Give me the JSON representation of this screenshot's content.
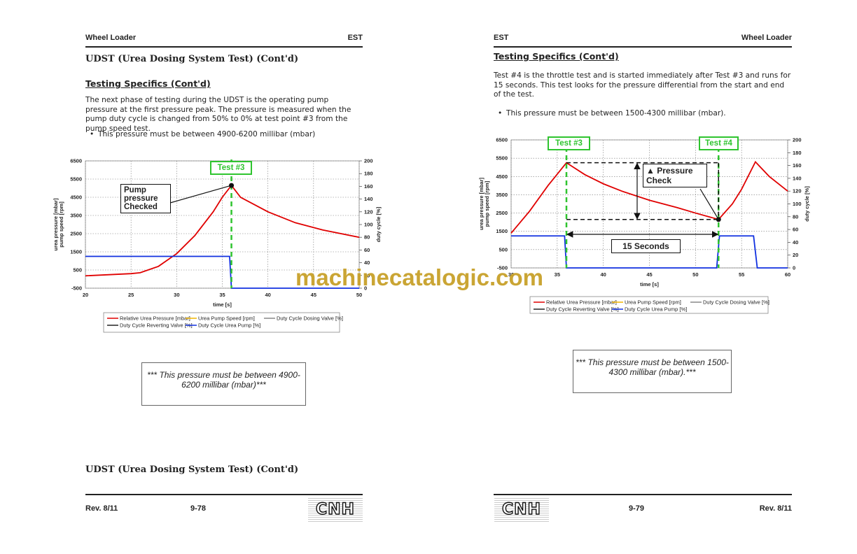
{
  "left_page": {
    "header": {
      "left": "Wheel Loader",
      "right": "EST"
    },
    "section_title": "UDST (Urea Dosing System Test) (Cont'd)",
    "subtitle": "Testing Specifics (Cont'd)",
    "paragraph": "The next phase of testing during the UDST is the operating pump pressure at the first pressure peak. The pressure is measured when the pump duty cycle is changed from 50% to 0% at test point #3 from the pump speed test.",
    "bullet": "This pressure must be between 4900-6200 millibar (mbar)",
    "chart": {
      "type": "line",
      "xlabel": "time [s]",
      "ylabel": [
        "urea pressure [mbar]",
        "pump speed [rpm]"
      ],
      "y2label": "duty cycle [%]",
      "xlim": [
        20,
        50
      ],
      "xticks": [
        20,
        25,
        30,
        35,
        40,
        45,
        50
      ],
      "ylim": [
        -500,
        6500
      ],
      "yticks": [
        -500,
        500,
        1500,
        2500,
        3500,
        4500,
        5500,
        6500
      ],
      "y2lim": [
        0,
        200
      ],
      "y2ticks": [
        0,
        20,
        40,
        60,
        80,
        100,
        120,
        140,
        160,
        180,
        200
      ],
      "grid": true,
      "series": [
        {
          "name": "Relative Urea Pressure [mbar]",
          "color": "#e00000",
          "x": [
            20,
            25,
            26,
            28,
            30,
            32,
            34,
            35,
            36,
            37,
            40,
            43,
            46,
            50
          ],
          "values": [
            180,
            300,
            350,
            700,
            1400,
            2400,
            3700,
            4500,
            5150,
            4500,
            3700,
            3100,
            2700,
            2300
          ]
        },
        {
          "name": "Urea Pump Speed [rpm]",
          "color": "#f0b400",
          "x": [],
          "values": []
        },
        {
          "name": "Duty Cycle Dosing Valve [%]",
          "color": "#888888",
          "axis": "y2",
          "x": [],
          "values": []
        },
        {
          "name": "Duty Cycle Reverting Valve [%]",
          "color": "#222222",
          "axis": "y2",
          "x": [],
          "values": []
        },
        {
          "name": "Duty Cycle Urea Pump  [%]",
          "color": "#1030e0",
          "axis": "y2",
          "x": [
            20,
            35.8,
            36,
            50
          ],
          "values": [
            50,
            50,
            0,
            0
          ]
        }
      ],
      "annotations": [
        "Test #3",
        "Pump pressure Checked"
      ]
    },
    "note": "*** This pressure must be between 4900-6200 millibar (mbar)***",
    "footer_title": "UDST (Urea Dosing System Test) (Cont'd)",
    "footer": {
      "rev": "Rev. 8/11",
      "page": "9-78",
      "logo": "CNH"
    }
  },
  "right_page": {
    "header": {
      "left": "EST",
      "right": "Wheel Loader"
    },
    "subtitle": "Testing Specifics (Cont'd)",
    "paragraph": "Test #4 is the throttle test and is started immediately after Test #3 and runs for 15 seconds. This test looks for the pressure differential from the start and end of the test.",
    "bullet": "This pressure must be between 1500-4300 millibar (mbar).",
    "chart": {
      "type": "line",
      "xlabel": "time [s]",
      "ylabel": [
        "urea pressure [mbar]",
        "pump speed [rpm]"
      ],
      "y2label": "duty cycle [%]",
      "xlim": [
        30,
        60
      ],
      "xticks": [
        30,
        35,
        40,
        45,
        50,
        55,
        60
      ],
      "ylim": [
        -500,
        6500
      ],
      "yticks": [
        -500,
        500,
        1500,
        2500,
        3500,
        4500,
        5500,
        6500
      ],
      "y2lim": [
        0,
        200
      ],
      "y2ticks": [
        0,
        20,
        40,
        60,
        80,
        100,
        120,
        140,
        160,
        180,
        200
      ],
      "grid": true,
      "series": [
        {
          "name": "Relative Urea Pressure [mbar]",
          "color": "#e00000",
          "x": [
            30,
            32,
            34,
            36,
            38,
            40,
            42,
            45,
            48,
            50,
            52.5,
            54,
            55,
            56.5,
            58,
            60
          ],
          "values": [
            1400,
            2600,
            4000,
            5250,
            4600,
            4100,
            3700,
            3200,
            2800,
            2500,
            2150,
            3000,
            3800,
            5300,
            4500,
            3700
          ]
        },
        {
          "name": "Urea Pump Speed [rpm]",
          "color": "#f0b400",
          "x": [],
          "values": []
        },
        {
          "name": "Duty Cycle Dosing Valve [%]",
          "color": "#888888",
          "axis": "y2",
          "x": [],
          "values": []
        },
        {
          "name": "Duty Cycle Reverting Valve [%]",
          "color": "#222222",
          "axis": "y2",
          "x": [],
          "values": []
        },
        {
          "name": "Duty Cycle Urea Pump  [%]",
          "color": "#1030e0",
          "axis": "y2",
          "x": [
            30,
            35.8,
            36,
            52.3,
            52.6,
            56.3,
            56.7,
            60
          ],
          "values": [
            50,
            50,
            0,
            0,
            50,
            50,
            0,
            0
          ]
        }
      ],
      "annotations": [
        "Test #3",
        "Test #4",
        "▲ Pressure Check",
        "15 Seconds"
      ]
    },
    "note": "*** This pressure must be between 1500-4300 millibar (mbar).***",
    "footer": {
      "rev": "Rev. 8/11",
      "page": "9-79",
      "logo": "CNH"
    }
  },
  "watermark": "machinecatalogic.com"
}
